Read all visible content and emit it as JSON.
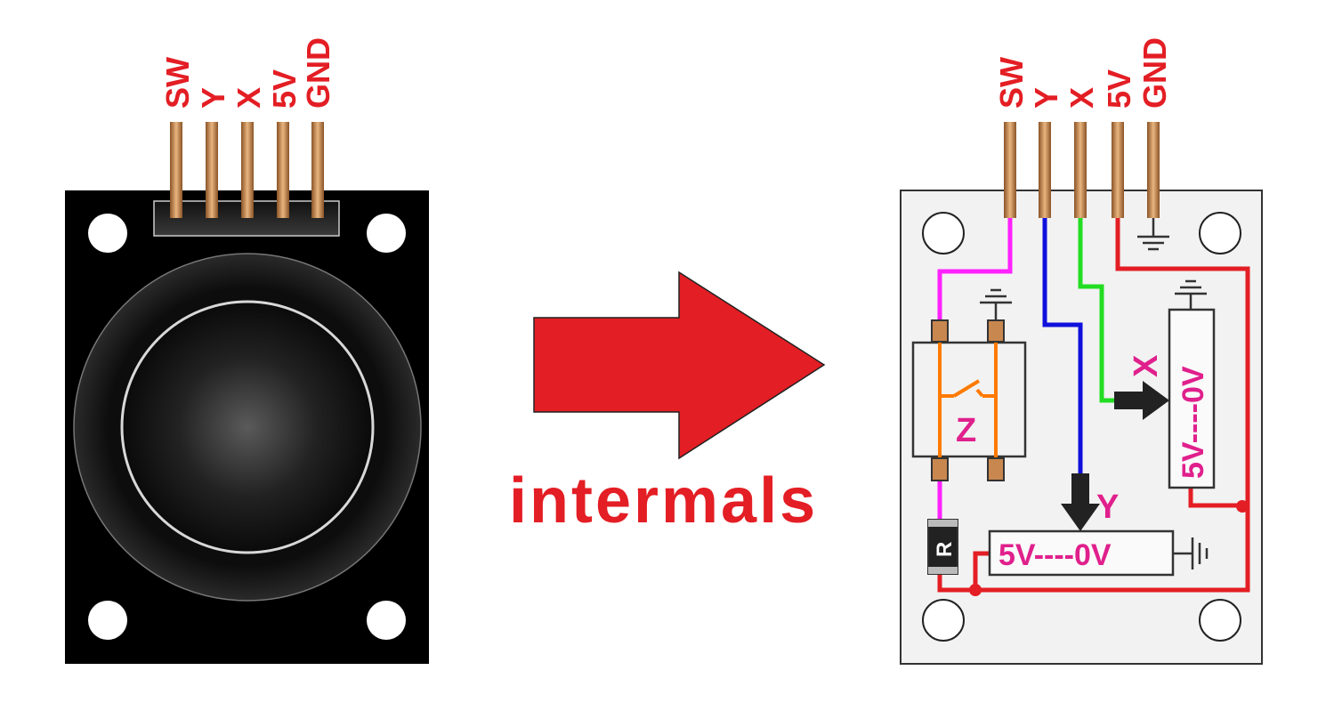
{
  "pins": [
    "SW",
    "Y",
    "X",
    "5V",
    "GND"
  ],
  "caption": "intermals",
  "internal": {
    "switch_label": "Z",
    "resistor_label": "R",
    "pot_x": {
      "axis": "X",
      "range": "5V----0V"
    },
    "pot_y": {
      "axis": "Y",
      "range": "5V----0V"
    }
  },
  "colors": {
    "label_red": "#e31e24",
    "arrow_red": "#e31e24",
    "pin_copper": "#c8874f",
    "wire_sw": "#ff22ff",
    "wire_y": "#1010dd",
    "wire_x": "#22dd22",
    "wire_5v": "#e31e24",
    "switch_orange": "#ff7a00",
    "pot_text": "#e0208c"
  }
}
